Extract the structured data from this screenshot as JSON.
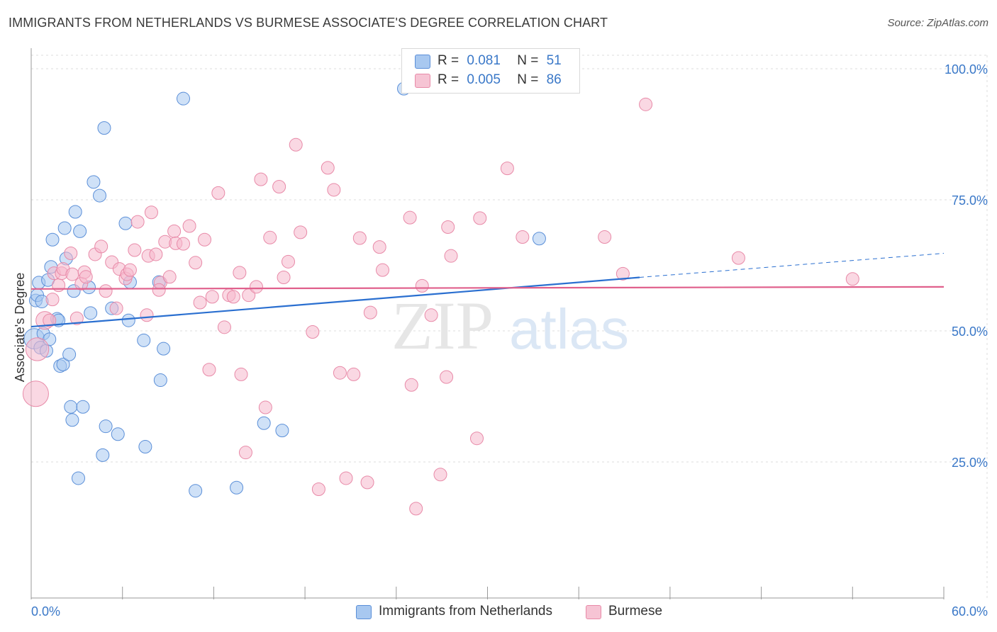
{
  "title": "IMMIGRANTS FROM NETHERLANDS VS BURMESE ASSOCIATE'S DEGREE CORRELATION CHART",
  "source": "Source: ZipAtlas.com",
  "watermark": {
    "part1": "ZIP",
    "part2": "atlas"
  },
  "colors": {
    "blue_fill": "#a8c8f0",
    "blue_stroke": "#5b8fd8",
    "blue_line": "#2a6fd0",
    "pink_fill": "#f6b8cc",
    "pink_stroke": "#e88aa8",
    "pink_line": "#e0608c",
    "axis_label": "#3a78c8",
    "grid": "#dddddd"
  },
  "legend": {
    "rows": [
      {
        "r_label": "R =",
        "r_value": "0.081",
        "n_label": "N =",
        "n_value": "51"
      },
      {
        "r_label": "R =",
        "r_value": "0.005",
        "n_label": "N =",
        "n_value": "86"
      }
    ]
  },
  "bottom_legend": [
    "Immigrants from Netherlands",
    "Burmese"
  ],
  "chart_data": {
    "type": "scatter",
    "title": "IMMIGRANTS FROM NETHERLANDS VS BURMESE ASSOCIATE'S DEGREE CORRELATION CHART",
    "xlabel": "",
    "ylabel": "Associate's Degree",
    "xlim": [
      0,
      60
    ],
    "ylim": [
      0,
      100
    ],
    "x_ticks_labels": [
      "0.0%",
      "60.0%"
    ],
    "y_ticks": [
      25,
      50,
      75,
      100
    ],
    "y_tick_labels": [
      "25.0%",
      "50.0%",
      "75.0%",
      "100.0%"
    ],
    "grid": true,
    "legend_position": "top-center",
    "series": [
      {
        "name": "Immigrants from Netherlands",
        "R": 0.081,
        "N": 51,
        "trend": {
          "x0": 0,
          "y0": 50.8,
          "x1": 40,
          "y1": 60.2,
          "dashed_to_x": 60,
          "dashed_to_y": 64.8
        },
        "points": [
          [
            0.2,
            48.5,
            1.6
          ],
          [
            0.3,
            55.8,
            1
          ],
          [
            0.4,
            56.8,
            1
          ],
          [
            0.5,
            59.2,
            1
          ],
          [
            0.6,
            46.8,
            1
          ],
          [
            0.7,
            55.6,
            1
          ],
          [
            0.8,
            49.5,
            1
          ],
          [
            1.0,
            46.2,
            1
          ],
          [
            1.1,
            59.7,
            1
          ],
          [
            1.2,
            48.4,
            1
          ],
          [
            1.3,
            62.2,
            1
          ],
          [
            1.4,
            67.4,
            1
          ],
          [
            1.7,
            52.3,
            1
          ],
          [
            1.8,
            52.0,
            1
          ],
          [
            1.9,
            43.3,
            1
          ],
          [
            2.1,
            43.6,
            1
          ],
          [
            2.2,
            69.6,
            1
          ],
          [
            2.3,
            63.8,
            1
          ],
          [
            2.5,
            45.5,
            1
          ],
          [
            2.6,
            35.5,
            1
          ],
          [
            2.7,
            33.0,
            1
          ],
          [
            2.8,
            57.6,
            1
          ],
          [
            2.9,
            72.7,
            1
          ],
          [
            3.1,
            21.9,
            1
          ],
          [
            3.2,
            69.0,
            1
          ],
          [
            3.4,
            35.5,
            1
          ],
          [
            3.8,
            58.3,
            1
          ],
          [
            3.9,
            53.4,
            1
          ],
          [
            4.1,
            78.4,
            1
          ],
          [
            4.5,
            75.8,
            1
          ],
          [
            4.7,
            26.3,
            1
          ],
          [
            4.8,
            88.7,
            1
          ],
          [
            4.9,
            31.8,
            1
          ],
          [
            5.3,
            54.3,
            1
          ],
          [
            5.7,
            30.3,
            1
          ],
          [
            6.2,
            70.5,
            1
          ],
          [
            6.4,
            52.0,
            1
          ],
          [
            6.5,
            59.3,
            1
          ],
          [
            7.4,
            48.2,
            1
          ],
          [
            7.5,
            27.9,
            1
          ],
          [
            8.4,
            59.3,
            1
          ],
          [
            8.5,
            40.6,
            1
          ],
          [
            8.7,
            46.6,
            1
          ],
          [
            10.0,
            94.3,
            1
          ],
          [
            10.8,
            19.5,
            1
          ],
          [
            13.5,
            20.1,
            1
          ],
          [
            15.3,
            32.4,
            1
          ],
          [
            16.5,
            31.0,
            1
          ],
          [
            24.5,
            96.2,
            1
          ],
          [
            33.4,
            67.6,
            1
          ]
        ]
      },
      {
        "name": "Burmese",
        "R": 0.005,
        "N": 86,
        "trend": {
          "x0": 0,
          "y0": 58.0,
          "x1": 60,
          "y1": 58.4
        },
        "points": [
          [
            0.3,
            38.0,
            2.0
          ],
          [
            0.4,
            46.5,
            1.8
          ],
          [
            0.9,
            52.0,
            1.4
          ],
          [
            1.2,
            52.0,
            1
          ],
          [
            1.4,
            56.0,
            1
          ],
          [
            1.5,
            61.0,
            1
          ],
          [
            1.8,
            58.7,
            1
          ],
          [
            2.0,
            61.0,
            1
          ],
          [
            2.1,
            61.8,
            1
          ],
          [
            2.6,
            64.8,
            1
          ],
          [
            2.7,
            60.8,
            1
          ],
          [
            3.0,
            52.4,
            1
          ],
          [
            3.3,
            59.0,
            1
          ],
          [
            3.5,
            61.2,
            1
          ],
          [
            3.6,
            60.3,
            1
          ],
          [
            4.2,
            64.6,
            1
          ],
          [
            4.6,
            66.1,
            1
          ],
          [
            4.9,
            57.6,
            1
          ],
          [
            5.3,
            63.1,
            1
          ],
          [
            5.6,
            54.3,
            1
          ],
          [
            5.8,
            61.8,
            1
          ],
          [
            6.2,
            60.0,
            1
          ],
          [
            6.3,
            60.8,
            1
          ],
          [
            6.5,
            61.6,
            1
          ],
          [
            6.8,
            65.4,
            1
          ],
          [
            7.0,
            70.8,
            1
          ],
          [
            7.6,
            53.0,
            1
          ],
          [
            7.7,
            64.3,
            1
          ],
          [
            7.9,
            72.6,
            1
          ],
          [
            8.2,
            64.6,
            1
          ],
          [
            8.5,
            59.2,
            1
          ],
          [
            8.4,
            57.8,
            1
          ],
          [
            8.8,
            67.0,
            1
          ],
          [
            9.1,
            60.3,
            1
          ],
          [
            9.4,
            69.0,
            1
          ],
          [
            9.5,
            66.7,
            1
          ],
          [
            10.0,
            66.6,
            1
          ],
          [
            10.4,
            70.0,
            1
          ],
          [
            10.8,
            63.0,
            1
          ],
          [
            11.1,
            55.4,
            1
          ],
          [
            11.4,
            67.4,
            1
          ],
          [
            11.7,
            42.6,
            1
          ],
          [
            11.9,
            56.5,
            1
          ],
          [
            12.3,
            76.3,
            1
          ],
          [
            12.7,
            50.7,
            1
          ],
          [
            13.0,
            56.8,
            1
          ],
          [
            13.3,
            56.5,
            1
          ],
          [
            13.7,
            61.1,
            1
          ],
          [
            13.8,
            41.7,
            1
          ],
          [
            14.1,
            26.8,
            1
          ],
          [
            14.3,
            56.8,
            1
          ],
          [
            14.8,
            58.4,
            1
          ],
          [
            15.1,
            78.9,
            1
          ],
          [
            15.4,
            35.4,
            1
          ],
          [
            15.7,
            67.8,
            1
          ],
          [
            16.3,
            77.5,
            1
          ],
          [
            16.6,
            60.2,
            1
          ],
          [
            16.9,
            63.2,
            1
          ],
          [
            17.4,
            85.5,
            1
          ],
          [
            17.7,
            68.8,
            1
          ],
          [
            18.5,
            49.8,
            1
          ],
          [
            18.9,
            19.8,
            1
          ],
          [
            19.5,
            81.1,
            1
          ],
          [
            19.9,
            76.9,
            1
          ],
          [
            20.3,
            42.0,
            1
          ],
          [
            20.7,
            21.9,
            1
          ],
          [
            21.2,
            41.7,
            1
          ],
          [
            21.6,
            67.7,
            1
          ],
          [
            22.1,
            21.1,
            1
          ],
          [
            22.3,
            53.5,
            1
          ],
          [
            22.9,
            66.0,
            1
          ],
          [
            23.1,
            61.6,
            1
          ],
          [
            24.9,
            71.6,
            1
          ],
          [
            25.0,
            39.7,
            1
          ],
          [
            25.3,
            16.1,
            1
          ],
          [
            25.7,
            58.6,
            1
          ],
          [
            26.3,
            53.0,
            1
          ],
          [
            26.9,
            22.6,
            1
          ],
          [
            27.3,
            41.2,
            1
          ],
          [
            27.4,
            69.8,
            1
          ],
          [
            27.6,
            64.3,
            1
          ],
          [
            29.3,
            29.5,
            1
          ],
          [
            29.5,
            71.5,
            1
          ],
          [
            31.3,
            81.0,
            1
          ],
          [
            32.3,
            67.9,
            1
          ],
          [
            37.7,
            67.9,
            1
          ],
          [
            38.9,
            60.9,
            1
          ],
          [
            40.4,
            93.2,
            1
          ],
          [
            46.5,
            63.9,
            1
          ],
          [
            54.0,
            59.9,
            1
          ]
        ]
      }
    ]
  }
}
